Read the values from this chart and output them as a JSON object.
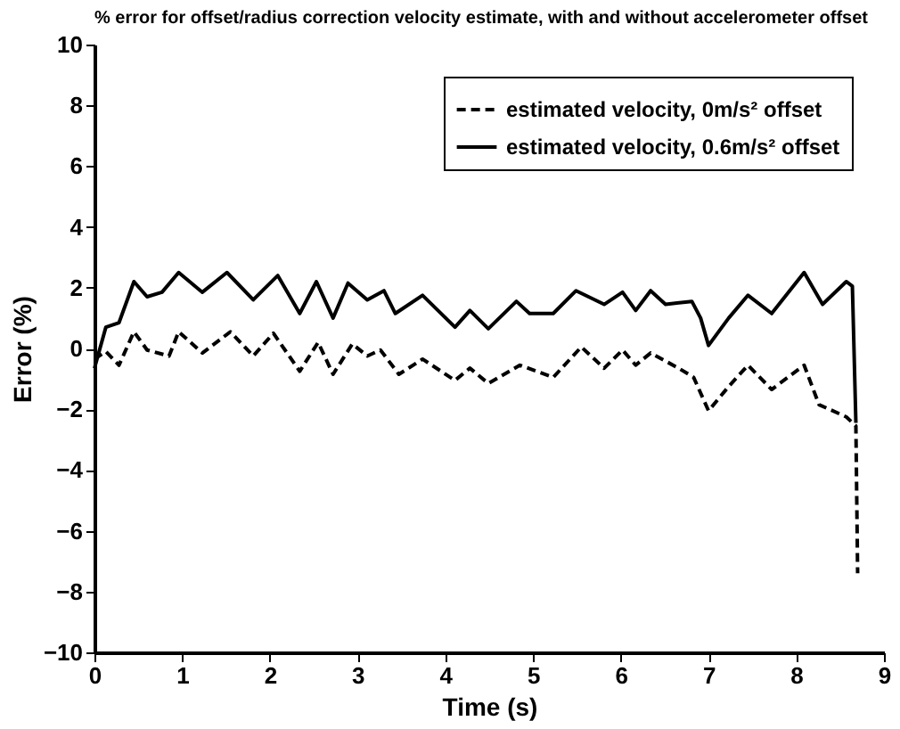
{
  "chart_data": {
    "type": "line",
    "title": "% error for offset/radius correction velocity estimate, with and without accelerometer offset",
    "xlabel": "Time (s)",
    "ylabel": "Error (%)",
    "xlim": [
      0,
      9
    ],
    "xticks": [
      0,
      1,
      2,
      3,
      4,
      5,
      6,
      7,
      8,
      9
    ],
    "ylim": [
      -10,
      10
    ],
    "yticks": [
      -10,
      -8,
      -6,
      -4,
      -2,
      0,
      2,
      4,
      6,
      8,
      10
    ],
    "grid": false,
    "legend": "top right",
    "marker": "none",
    "series": [
      {
        "name": "estimated velocity, 0m/s² offset",
        "color": "#000000",
        "line_style": "dashed",
        "x": [
          0,
          0.13,
          0.28,
          0.45,
          0.6,
          0.85,
          0.96,
          1.23,
          1.55,
          1.81,
          2.04,
          2.34,
          2.55,
          2.72,
          2.94,
          3.11,
          3.26,
          3.47,
          3.74,
          4.11,
          4.28,
          4.49,
          4.85,
          5.23,
          5.55,
          5.81,
          6.02,
          6.17,
          6.34,
          6.66,
          6.83,
          7.0,
          7.23,
          7.45,
          7.72,
          8.09,
          8.26,
          8.57,
          8.68,
          8.7
        ],
        "values": [
          -0.35,
          -0.1,
          -0.55,
          0.55,
          -0.05,
          -0.25,
          0.55,
          -0.15,
          0.55,
          -0.25,
          0.5,
          -0.75,
          0.2,
          -0.85,
          0.15,
          -0.25,
          -0.05,
          -0.85,
          -0.35,
          -1.05,
          -0.65,
          -1.15,
          -0.55,
          -0.95,
          0.05,
          -0.65,
          -0.05,
          -0.55,
          -0.15,
          -0.65,
          -0.95,
          -2.05,
          -1.25,
          -0.55,
          -1.35,
          -0.55,
          -1.85,
          -2.25,
          -2.55,
          -7.4
        ]
      },
      {
        "name": "estimated velocity, 0.6m/s² offset",
        "color": "#000000",
        "line_style": "solid",
        "x": [
          0,
          0.13,
          0.28,
          0.45,
          0.6,
          0.77,
          0.96,
          1.23,
          1.51,
          1.81,
          2.09,
          2.34,
          2.53,
          2.72,
          2.89,
          3.11,
          3.3,
          3.43,
          3.74,
          4.11,
          4.28,
          4.49,
          4.81,
          4.96,
          5.23,
          5.49,
          5.81,
          6.02,
          6.17,
          6.34,
          6.51,
          6.81,
          6.91,
          7.0,
          7.23,
          7.45,
          7.72,
          8.09,
          8.3,
          8.57,
          8.64,
          8.68
        ],
        "values": [
          -0.65,
          0.7,
          0.85,
          2.2,
          1.7,
          1.85,
          2.5,
          1.85,
          2.5,
          1.6,
          2.4,
          1.15,
          2.2,
          1.0,
          2.15,
          1.6,
          1.9,
          1.15,
          1.75,
          0.7,
          1.25,
          0.65,
          1.55,
          1.15,
          1.15,
          1.9,
          1.45,
          1.85,
          1.25,
          1.9,
          1.45,
          1.55,
          1.0,
          0.1,
          1.0,
          1.75,
          1.15,
          2.5,
          1.45,
          2.2,
          2.05,
          -2.45
        ]
      }
    ]
  }
}
